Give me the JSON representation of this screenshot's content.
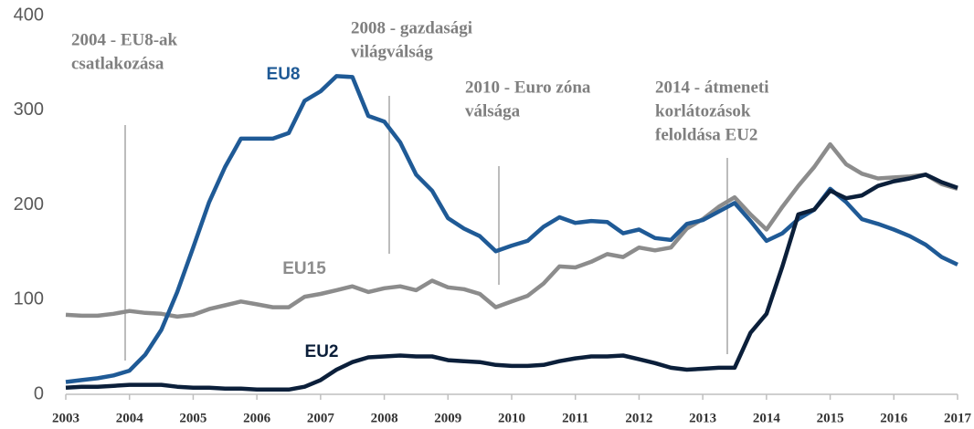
{
  "chart_data": {
    "type": "line",
    "x": [
      2003,
      2003.25,
      2003.5,
      2003.75,
      2004,
      2004.25,
      2004.5,
      2004.75,
      2005,
      2005.25,
      2005.5,
      2005.75,
      2006,
      2006.25,
      2006.5,
      2006.75,
      2007,
      2007.25,
      2007.5,
      2007.75,
      2008,
      2008.25,
      2008.5,
      2008.75,
      2009,
      2009.25,
      2009.5,
      2009.75,
      2010,
      2010.25,
      2010.5,
      2010.75,
      2011,
      2011.25,
      2011.5,
      2011.75,
      2012,
      2012.25,
      2012.5,
      2012.75,
      2013,
      2013.25,
      2013.5,
      2013.75,
      2014,
      2014.25,
      2014.5,
      2014.75,
      2015,
      2015.25,
      2015.5,
      2015.75,
      2016,
      2016.25,
      2016.5,
      2016.75,
      2017
    ],
    "series": [
      {
        "name": "EU8",
        "color": "#1f5a96",
        "values": [
          13,
          15,
          17,
          20,
          25,
          42,
          68,
          108,
          155,
          203,
          240,
          270,
          270,
          270,
          276,
          310,
          320,
          336,
          335,
          294,
          288,
          266,
          232,
          215,
          186,
          175,
          167,
          151,
          157,
          162,
          177,
          187,
          181,
          183,
          182,
          170,
          174,
          165,
          163,
          180,
          184,
          193,
          202,
          183,
          162,
          170,
          185,
          195,
          217,
          203,
          185,
          180,
          174,
          167,
          158,
          145,
          137
        ]
      },
      {
        "name": "EU15",
        "color": "#8c8c8c",
        "values": [
          84,
          83,
          83,
          85,
          88,
          86,
          85,
          82,
          84,
          90,
          94,
          98,
          95,
          92,
          92,
          103,
          106,
          110,
          114,
          108,
          112,
          114,
          110,
          120,
          113,
          111,
          106,
          92,
          98,
          104,
          117,
          135,
          134,
          140,
          148,
          145,
          155,
          152,
          155,
          175,
          185,
          198,
          208,
          190,
          174,
          198,
          220,
          240,
          264,
          243,
          233,
          228,
          229,
          230,
          232,
          222,
          217
        ]
      },
      {
        "name": "EU2",
        "color": "#0b1f3a",
        "values": [
          7,
          8,
          8,
          9,
          10,
          10,
          10,
          8,
          7,
          7,
          6,
          6,
          5,
          5,
          5,
          8,
          15,
          26,
          34,
          39,
          40,
          41,
          40,
          40,
          36,
          35,
          34,
          31,
          30,
          30,
          31,
          35,
          38,
          40,
          40,
          41,
          37,
          33,
          28,
          26,
          27,
          28,
          28,
          65,
          85,
          135,
          190,
          195,
          215,
          207,
          210,
          220,
          225,
          228,
          232,
          224,
          218
        ]
      }
    ],
    "annotations": [
      [
        "2004 - EU8-ak",
        "csatlakozása"
      ],
      [
        "2008 - gazdasági",
        "világválság"
      ],
      [
        "2010 - Euro zóna",
        "válsága"
      ],
      [
        "2014 - átmeneti",
        "korlátozások",
        "feloldása EU2"
      ]
    ],
    "xlim": [
      2003,
      2017
    ],
    "xticks": [
      2003,
      2004,
      2005,
      2006,
      2007,
      2008,
      2009,
      2010,
      2011,
      2012,
      2013,
      2014,
      2015,
      2016,
      2017
    ],
    "ylim": [
      0,
      400
    ],
    "yticks": [
      0,
      100,
      200,
      300,
      400
    ]
  }
}
